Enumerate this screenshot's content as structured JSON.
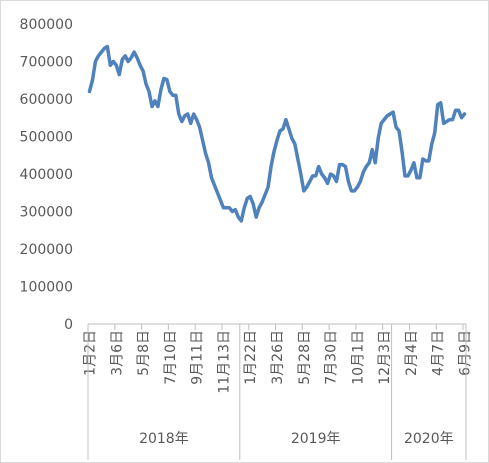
{
  "chart_data": {
    "type": "line",
    "categories": [
      "1月2日",
      null,
      null,
      null,
      null,
      null,
      null,
      null,
      null,
      "3月6日",
      null,
      null,
      null,
      null,
      null,
      null,
      null,
      null,
      "5月8日",
      null,
      null,
      null,
      null,
      null,
      null,
      null,
      null,
      "7月10日",
      null,
      null,
      null,
      null,
      null,
      null,
      null,
      null,
      "9月11日",
      null,
      null,
      null,
      null,
      null,
      null,
      null,
      null,
      "11月13日",
      null,
      null,
      null,
      null,
      null,
      null,
      null,
      null,
      "1月22日",
      null,
      null,
      null,
      null,
      null,
      null,
      null,
      null,
      "3月26日",
      null,
      null,
      null,
      null,
      null,
      null,
      null,
      null,
      "5月28日",
      null,
      null,
      null,
      null,
      null,
      null,
      null,
      null,
      "7月30日",
      null,
      null,
      null,
      null,
      null,
      null,
      null,
      null,
      "10月1日",
      null,
      null,
      null,
      null,
      null,
      null,
      null,
      null,
      "12月3日",
      null,
      null,
      null,
      null,
      null,
      null,
      null,
      null,
      "2月4日",
      null,
      null,
      null,
      null,
      null,
      null,
      null,
      null,
      "4月7日",
      null,
      null,
      null,
      null,
      null,
      null,
      null,
      null,
      "6月9日"
    ],
    "groups": [
      {
        "name": "2018年",
        "count": 51
      },
      {
        "name": "2019年",
        "count": 51
      },
      {
        "name": "2020年",
        "count": 25
      }
    ],
    "values": [
      620000,
      650000,
      700000,
      715000,
      725000,
      735000,
      740000,
      690000,
      700000,
      690000,
      665000,
      705000,
      715000,
      700000,
      710000,
      725000,
      710000,
      690000,
      675000,
      640000,
      620000,
      580000,
      595000,
      580000,
      625000,
      655000,
      652000,
      620000,
      610000,
      610000,
      560000,
      540000,
      555000,
      560000,
      535000,
      560000,
      545000,
      525000,
      490000,
      455000,
      430000,
      390000,
      370000,
      350000,
      330000,
      310000,
      310000,
      310000,
      300000,
      305000,
      285000,
      275000,
      310000,
      335000,
      340000,
      320000,
      285000,
      310000,
      325000,
      345000,
      365000,
      420000,
      460000,
      490000,
      515000,
      520000,
      545000,
      520000,
      495000,
      480000,
      440000,
      400000,
      355000,
      365000,
      380000,
      395000,
      395000,
      420000,
      400000,
      390000,
      375000,
      400000,
      395000,
      380000,
      425000,
      425000,
      420000,
      380000,
      355000,
      355000,
      365000,
      380000,
      405000,
      420000,
      430000,
      465000,
      430000,
      495000,
      535000,
      545000,
      555000,
      560000,
      565000,
      525000,
      515000,
      460000,
      395000,
      395000,
      410000,
      430000,
      390000,
      390000,
      440000,
      435000,
      435000,
      480000,
      510000,
      585000,
      590000,
      535000,
      540000,
      545000,
      545000,
      570000,
      570000,
      550000,
      560000
    ],
    "color": "#4f81bd",
    "ylim": [
      0,
      800000
    ],
    "yticks": [
      0,
      100000,
      200000,
      300000,
      400000,
      500000,
      600000,
      700000,
      800000
    ],
    "grid": false
  }
}
